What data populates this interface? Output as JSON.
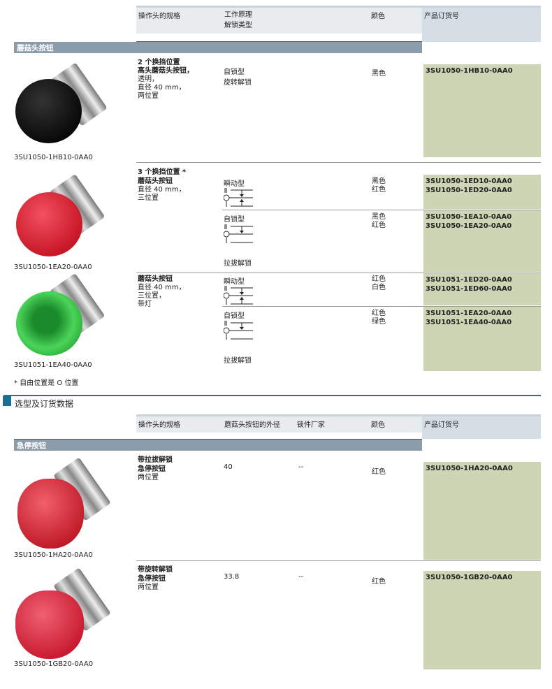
{
  "table1": {
    "headers": [
      "操作头的规格",
      "工作原理",
      "解锁类型",
      "颜色",
      "产品订货号"
    ],
    "section": "蘑菇头按钮",
    "group1": {
      "title": "2 个换挡位置",
      "spec_bold": "高头蘑菇头按钮，",
      "spec": [
        "透明，",
        "直径 40 mm，",
        "两位置"
      ],
      "principle": "自锁型",
      "unlock": "旋转解锁",
      "color": "黑色",
      "order": "3SU1050-1HB10-0AA0",
      "image_caption": "3SU1050-1HB10-0AA0"
    },
    "group2": {
      "title": "3 个换挡位置 *",
      "spec_bold": "蘑菇头按钮",
      "spec": [
        "直径 40 mm，",
        "三位置"
      ],
      "rows": [
        {
          "principle": "瞬动型",
          "colors": [
            "黑色",
            "红色"
          ],
          "orders": [
            "3SU1050-1ED10-0AA0",
            "3SU1050-1ED20-0AA0"
          ]
        },
        {
          "principle": "自锁型",
          "unlock": "拉拔解锁",
          "colors": [
            "黑色",
            "红色"
          ],
          "orders": [
            "3SU1050-1EA10-0AA0",
            "3SU1050-1EA20-0AA0"
          ]
        }
      ],
      "image_caption": "3SU1050-1EA20-0AA0"
    },
    "group3": {
      "spec_bold": "蘑菇头按钮",
      "spec": [
        "直径 40 mm，",
        "三位置，",
        "带灯"
      ],
      "rows": [
        {
          "principle": "瞬动型",
          "colors": [
            "红色",
            "白色"
          ],
          "orders": [
            "3SU1051-1ED20-0AA0",
            "3SU1051-1ED60-0AA0"
          ]
        },
        {
          "principle": "自锁型",
          "unlock": "拉拔解锁",
          "colors": [
            "红色",
            "绿色"
          ],
          "orders": [
            "3SU1051-1EA20-0AA0",
            "3SU1051-1EA40-0AA0"
          ]
        }
      ],
      "image_caption": "3SU1051-1EA40-0AA0"
    },
    "footnote": "* 自由位置是 O 位置"
  },
  "section_title": "选型及订货数据",
  "table2": {
    "headers": [
      "操作头的规格",
      "蘑菇头按钮的外径",
      "锁件厂家",
      "颜色",
      "产品订货号"
    ],
    "section": "急停按钮",
    "rows": [
      {
        "title": "带拉拔解锁",
        "spec_bold": "急停按钮",
        "spec": "两位置",
        "diameter": "40",
        "lock": "--",
        "color": "红色",
        "order": "3SU1050-1HA20-0AA0",
        "image_caption": "3SU1050-1HA20-0AA0"
      },
      {
        "title": "带旋转解锁",
        "spec_bold": "急停按钮",
        "spec": "两位置",
        "diameter": "33.8",
        "lock": "--",
        "color": "红色",
        "order": "3SU1050-1GB20-0AA0",
        "image_caption": "3SU1050-1GB20-0AA0"
      }
    ]
  },
  "colors": {
    "order_bg": "#cdd5b4",
    "section_bar": "#8b9dab",
    "title_accent": "#1a6e95"
  }
}
